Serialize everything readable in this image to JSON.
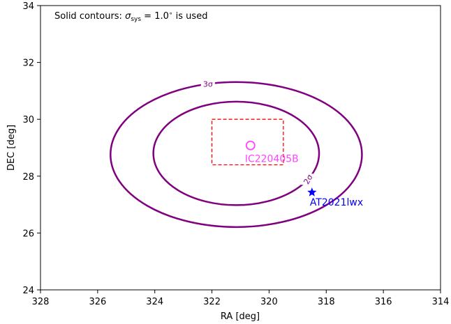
{
  "chart_data": {
    "type": "contour",
    "title": "",
    "annotation": {
      "prefix": "Solid contours: ",
      "sigma": "σ",
      "sub": "sys",
      "value": " = 1.0",
      "degree": "∘",
      "suffix": "  is used"
    },
    "xlabel": "RA [deg]",
    "ylabel": "DEC [deg]",
    "xlim": [
      328,
      314
    ],
    "ylim": [
      24,
      34
    ],
    "x_ticks": [
      "328",
      "326",
      "324",
      "322",
      "320",
      "318",
      "316",
      "314"
    ],
    "y_ticks": [
      "24",
      "26",
      "28",
      "30",
      "32",
      "34"
    ],
    "grid": false,
    "contours": [
      {
        "level_label": "2σ",
        "color": "#800080",
        "center": [
          321.15,
          28.8
        ],
        "ra_semi_axis": 2.9,
        "dec_semi_axis": 1.82
      },
      {
        "level_label": "3σ",
        "color": "#800080",
        "center": [
          321.15,
          28.76
        ],
        "ra_semi_axis": 4.4,
        "dec_semi_axis": 2.55
      }
    ],
    "box": {
      "ra": [
        322.0,
        319.5
      ],
      "dec": [
        28.4,
        30.0
      ],
      "color": "#ff0000",
      "style": "dashed"
    },
    "points": [
      {
        "name": "IC220405B",
        "ra": 320.65,
        "dec": 29.08,
        "marker": "circle",
        "color": "#ff44ff"
      },
      {
        "name": "AT2021lwx",
        "ra": 318.5,
        "dec": 27.43,
        "marker": "star",
        "color": "#0000ff"
      }
    ]
  }
}
